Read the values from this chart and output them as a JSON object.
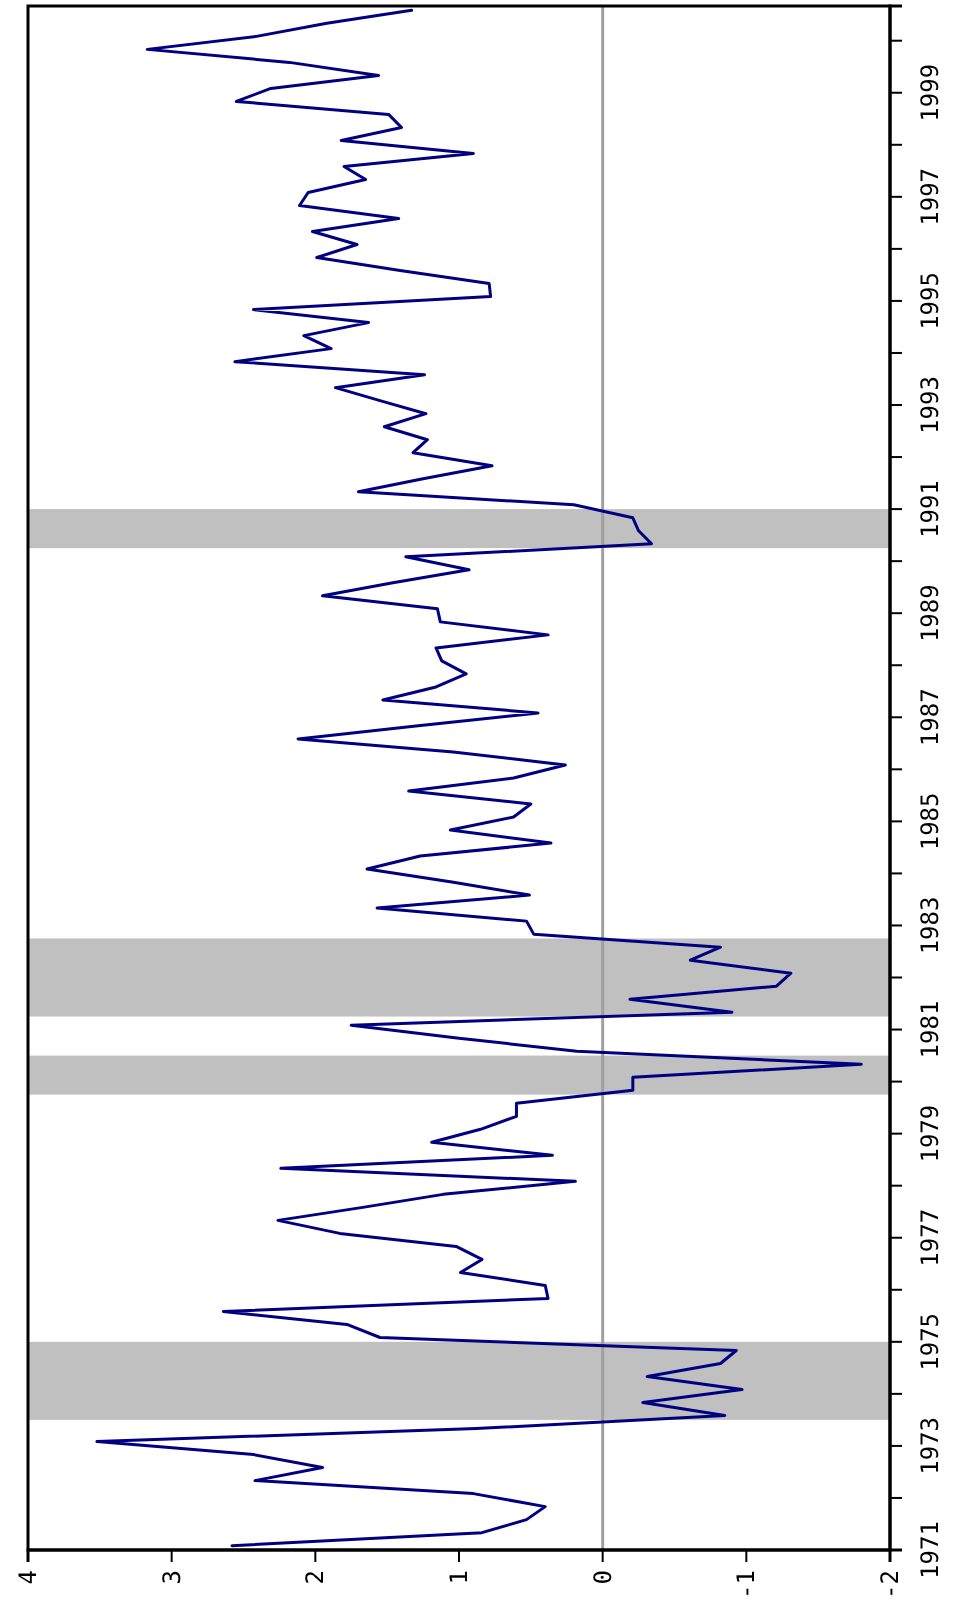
{
  "chart_data": {
    "type": "line",
    "x": [
      "1971-02",
      "1971-05",
      "1971-08",
      "1971-11",
      "1972-02",
      "1972-05",
      "1972-08",
      "1972-11",
      "1973-02",
      "1973-05",
      "1973-08",
      "1973-11",
      "1974-02",
      "1974-05",
      "1974-08",
      "1974-11",
      "1975-02",
      "1975-05",
      "1975-08",
      "1975-11",
      "1976-02",
      "1976-05",
      "1976-08",
      "1976-11",
      "1977-02",
      "1977-05",
      "1977-08",
      "1977-11",
      "1978-02",
      "1978-05",
      "1978-08",
      "1978-11",
      "1979-02",
      "1979-05",
      "1979-08",
      "1979-11",
      "1980-02",
      "1980-05",
      "1980-08",
      "1980-11",
      "1981-02",
      "1981-05",
      "1981-08",
      "1981-11",
      "1982-02",
      "1982-05",
      "1982-08",
      "1982-11",
      "1983-02",
      "1983-05",
      "1983-08",
      "1983-11",
      "1984-02",
      "1984-05",
      "1984-08",
      "1984-11",
      "1985-02",
      "1985-05",
      "1985-08",
      "1985-11",
      "1986-02",
      "1986-05",
      "1986-08",
      "1986-11",
      "1987-02",
      "1987-05",
      "1987-08",
      "1987-11",
      "1988-02",
      "1988-05",
      "1988-08",
      "1988-11",
      "1989-02",
      "1989-05",
      "1989-08",
      "1989-11",
      "1990-02",
      "1990-05",
      "1990-08",
      "1990-11",
      "1991-02",
      "1991-05",
      "1991-08",
      "1991-11",
      "1992-02",
      "1992-05",
      "1992-08",
      "1992-11",
      "1993-02",
      "1993-05",
      "1993-08",
      "1993-11",
      "1994-02",
      "1994-05",
      "1994-08",
      "1994-11",
      "1995-02",
      "1995-05",
      "1995-08",
      "1995-11",
      "1996-02",
      "1996-05",
      "1996-08",
      "1996-11",
      "1997-02",
      "1997-05",
      "1997-08",
      "1997-11",
      "1998-02",
      "1998-05",
      "1998-08",
      "1998-11",
      "1999-02",
      "1999-05",
      "1999-08",
      "1999-11",
      "2000-02",
      "2000-05",
      "2000-08"
    ],
    "series": [
      {
        "color": "#000080",
        "values": [
          2.58,
          0.84,
          0.53,
          0.4,
          0.9,
          2.42,
          1.95,
          2.43,
          3.52,
          0.88,
          -0.85,
          -0.28,
          -0.97,
          -0.31,
          -0.82,
          -0.93,
          1.55,
          1.78,
          2.64,
          0.38,
          0.4,
          0.99,
          0.84,
          1.02,
          1.83,
          2.26,
          1.67,
          1.11,
          0.19,
          2.24,
          0.35,
          1.19,
          0.85,
          0.6,
          0.6,
          -0.21,
          -0.21,
          -1.8,
          0.18,
          1.0,
          1.75,
          -0.9,
          -0.19,
          -1.21,
          -1.31,
          -0.61,
          -0.82,
          0.48,
          0.53,
          1.57,
          0.51,
          1.05,
          1.64,
          1.27,
          0.36,
          1.06,
          0.62,
          0.5,
          1.35,
          0.62,
          0.26,
          1.04,
          2.12,
          1.3,
          0.45,
          1.53,
          1.16,
          0.95,
          1.12,
          1.16,
          0.38,
          1.13,
          1.15,
          1.95,
          1.46,
          0.93,
          1.37,
          -0.34,
          -0.25,
          -0.21,
          0.2,
          1.7,
          1.25,
          0.77,
          1.32,
          1.22,
          1.52,
          1.23,
          1.55,
          1.86,
          1.24,
          2.56,
          1.89,
          2.08,
          1.63,
          2.43,
          0.78,
          0.79,
          1.41,
          1.99,
          1.71,
          2.02,
          1.42,
          2.11,
          2.05,
          1.65,
          1.8,
          0.9,
          1.82,
          1.4,
          1.49,
          2.55,
          2.31,
          1.56,
          2.18,
          3.17,
          2.41,
          1.92,
          1.33
        ]
      }
    ],
    "orientation": "horizontal",
    "xlim": [
      4,
      -2
    ],
    "xticks": [
      -2,
      -1,
      0,
      1,
      2,
      3,
      4
    ],
    "ylim": [
      "1971",
      "2000-09"
    ],
    "yticks": [
      "1971",
      {
        "value": "1972",
        "label": null
      },
      "1973",
      {
        "value": "1974",
        "label": null
      },
      "1975",
      {
        "value": "1976",
        "label": null
      },
      "1977",
      {
        "value": "1978",
        "label": null
      },
      "1979",
      {
        "value": "1980",
        "label": null
      },
      "1981",
      {
        "value": "1982",
        "label": null
      },
      "1983",
      {
        "value": "1984",
        "label": null
      },
      "1985",
      {
        "value": "1986",
        "label": null
      },
      "1987",
      {
        "value": "1988",
        "label": null
      },
      "1989",
      {
        "value": "1990",
        "label": null
      },
      "1991",
      {
        "value": "1992",
        "label": null
      },
      "1993",
      {
        "value": "1994",
        "label": null
      },
      "1995",
      {
        "value": "1996",
        "label": null
      },
      "1997",
      {
        "value": "1998",
        "label": null
      },
      "1999",
      {
        "value": "2000",
        "label": null
      }
    ],
    "ref_lines": [
      {
        "axis": "x",
        "value": 0,
        "color": "#a0a0a0"
      }
    ],
    "bands": [
      {
        "axis": "y",
        "from": "1973-07",
        "to": "1975-01",
        "color": "#c0c0c0"
      },
      {
        "axis": "y",
        "from": "1979-10",
        "to": "1980-07",
        "color": "#c0c0c0"
      },
      {
        "axis": "y",
        "from": "1981-04",
        "to": "1982-10",
        "color": "#c0c0c0"
      },
      {
        "axis": "y",
        "from": "1990-04",
        "to": "1991-01",
        "color": "#c0c0c0"
      }
    ]
  }
}
